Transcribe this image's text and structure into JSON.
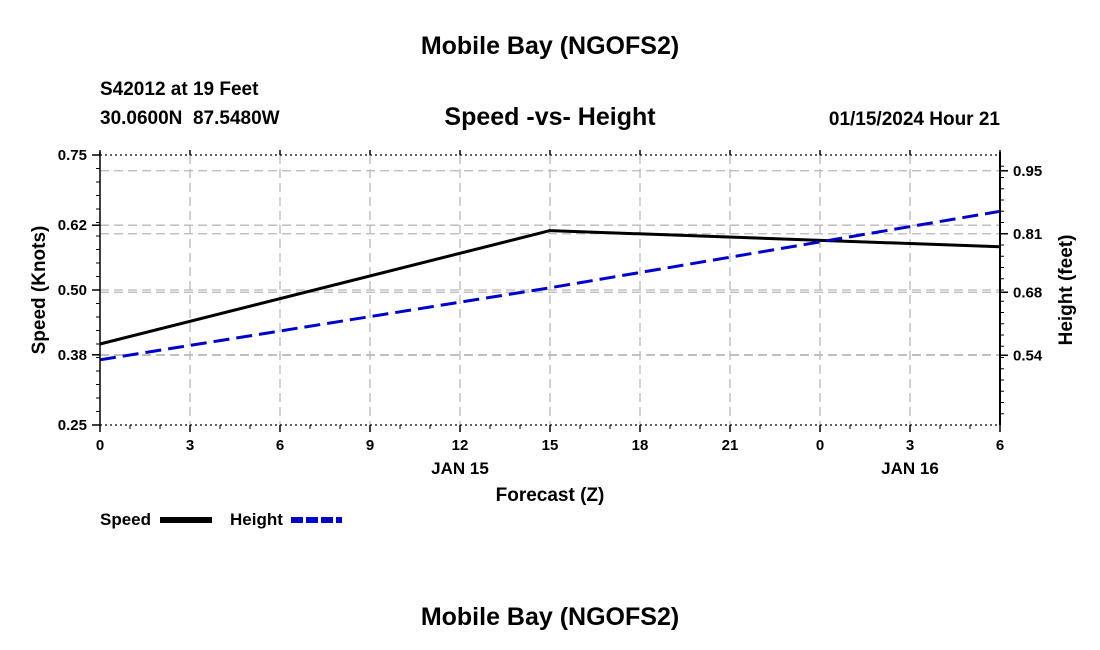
{
  "chart_data": {
    "type": "line",
    "title": "Mobile Bay (NGOFS2)",
    "footer_title": "Mobile Bay (NGOFS2)",
    "station_label": "S42012 at 19 Feet",
    "coordinates": "30.0600N  87.5480W",
    "subtitle": "Speed -vs- Height",
    "timestamp": "01/15/2024 Hour 21",
    "xlabel": "Forecast (Z)",
    "ylabel_left": "Speed (Knots)",
    "ylabel_right": "Height (feet)",
    "x_ticks": [
      "0",
      "3",
      "6",
      "9",
      "12",
      "15",
      "18",
      "21",
      "0",
      "3",
      "6"
    ],
    "x_range": [
      0,
      30
    ],
    "date_labels": [
      {
        "label": "JAN 15",
        "x": 12
      },
      {
        "label": "JAN 16",
        "x": 27
      }
    ],
    "y_left": {
      "range": [
        0.25,
        0.75
      ],
      "ticks": [
        0.75,
        0.62,
        0.5,
        0.38,
        0.25
      ],
      "tick_labels": [
        "0.75",
        "0.62",
        "0.50",
        "0.38",
        "0.25"
      ]
    },
    "y_right": {
      "range": [
        0.385,
        0.985
      ],
      "ticks": [
        0.95,
        0.81,
        0.68,
        0.54
      ],
      "tick_labels": [
        "0.95",
        "0.81",
        "0.68",
        "0.54"
      ]
    },
    "grid": true,
    "series": [
      {
        "name": "Speed",
        "axis": "left",
        "color": "#000000",
        "style": "solid",
        "x": [
          0,
          15,
          30
        ],
        "values": [
          0.4,
          0.61,
          0.58
        ]
      },
      {
        "name": "Height",
        "axis": "right",
        "color": "#0000cc",
        "style": "dashed",
        "x": [
          0,
          15,
          30
        ],
        "values": [
          0.53,
          0.69,
          0.86
        ]
      }
    ],
    "legend": {
      "placement": "bottom-left",
      "items": [
        "Speed",
        "Height"
      ]
    }
  }
}
